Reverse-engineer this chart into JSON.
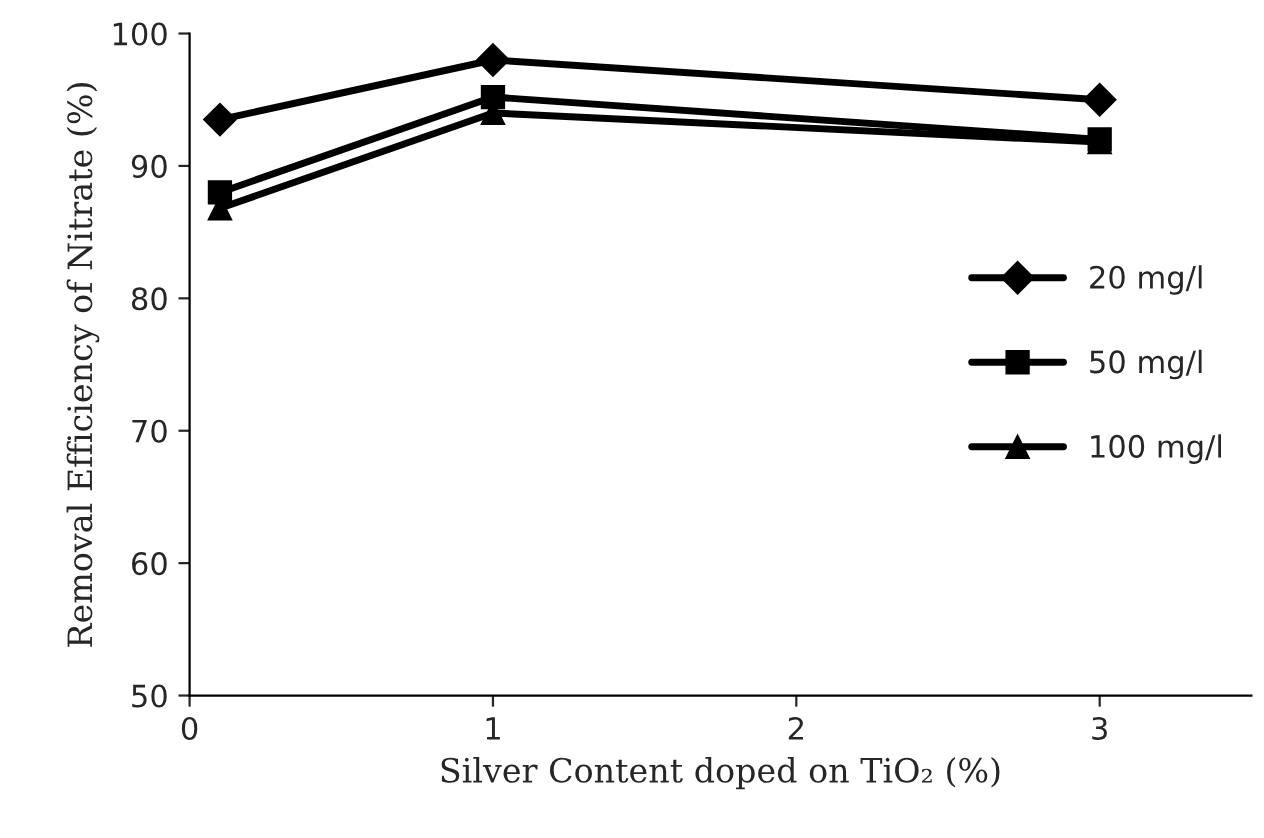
{
  "chart_data": {
    "type": "line",
    "xlabel": "Silver Content doped on TiO₂ (%)",
    "ylabel": "Removal Efficiency of Nitrate (%)",
    "x": [
      0.1,
      1,
      3
    ],
    "series": [
      {
        "name": "20 mg/l",
        "color": "#000000",
        "marker": "diamond",
        "values": [
          93.5,
          98,
          95
        ]
      },
      {
        "name": "50 mg/l",
        "color": "#000000",
        "marker": "square",
        "values": [
          88,
          95.2,
          92
        ]
      },
      {
        "name": "100 mg/l",
        "color": "#000000",
        "marker": "triangle",
        "values": [
          86.8,
          94,
          91.8
        ]
      }
    ],
    "xlim": [
      0,
      3.5
    ],
    "xticks": [
      0,
      1,
      2,
      3
    ],
    "ylim": [
      50,
      100
    ],
    "yticks": [
      50,
      60,
      70,
      80,
      90,
      100
    ],
    "grid": false,
    "legend": "right",
    "line_style": "solid"
  }
}
